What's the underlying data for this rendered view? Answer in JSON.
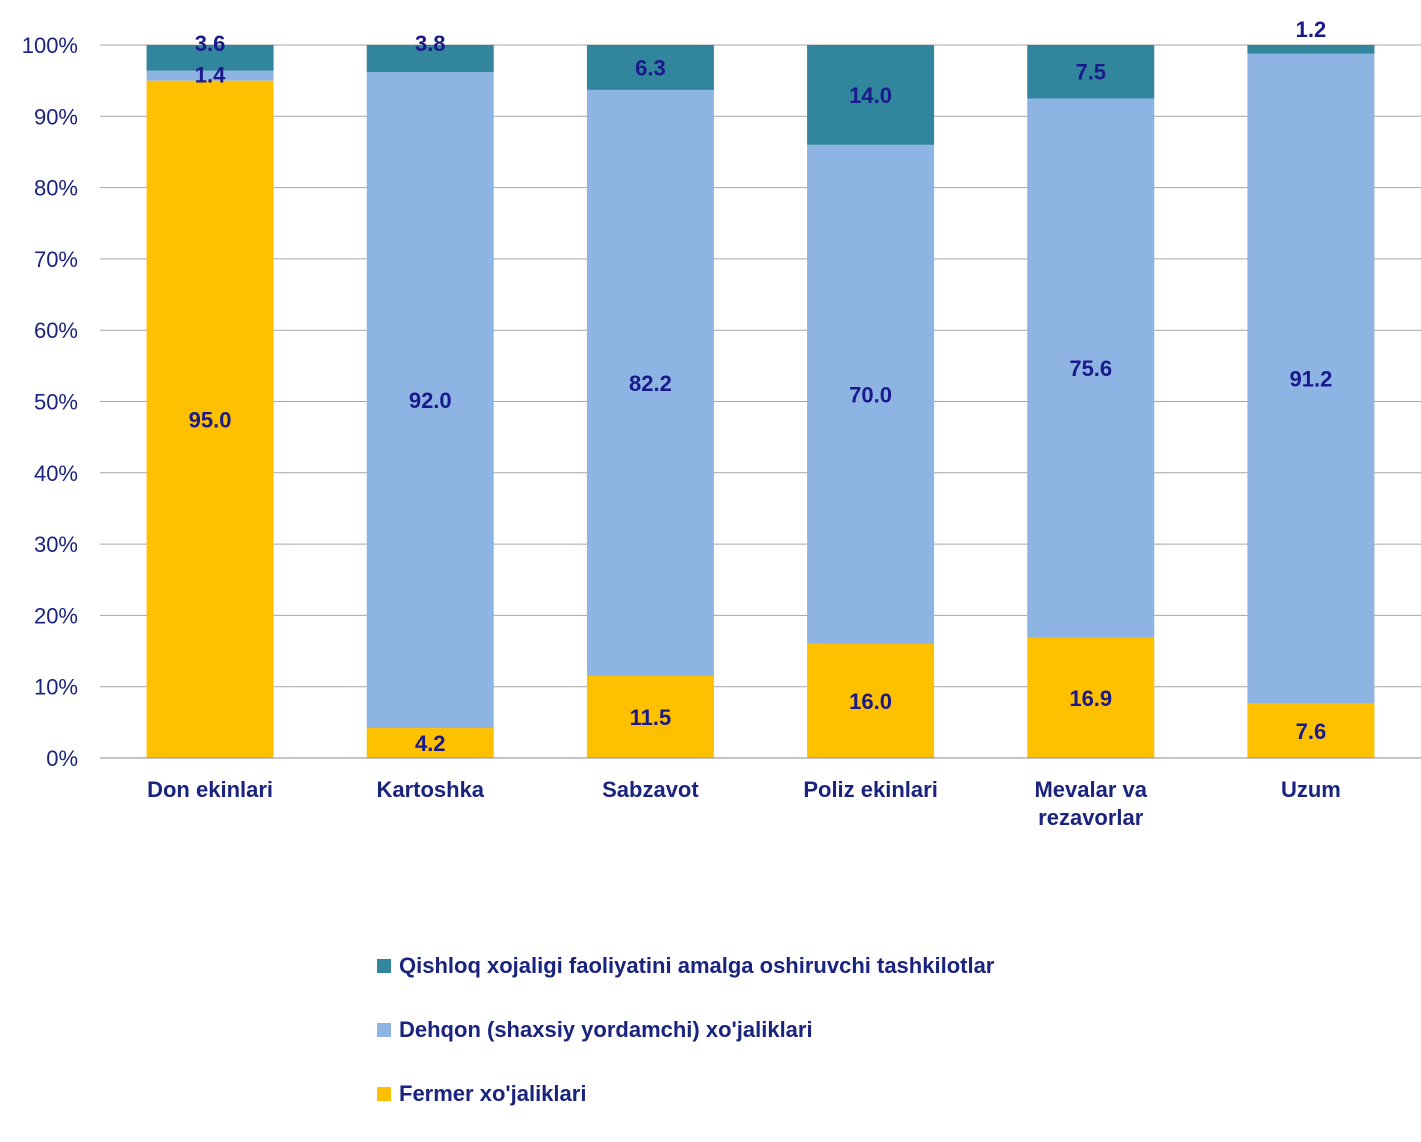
{
  "chart_data": {
    "type": "bar",
    "stacked": true,
    "categories": [
      "Don ekinlari",
      "Kartoshka",
      "Sabzavot",
      "Poliz ekinlari",
      "Mevalar va rezavorlar",
      "Uzum"
    ],
    "series": [
      {
        "name": "Fermer xo'jaliklari",
        "color": "#ffc000",
        "values": [
          95.0,
          4.2,
          11.5,
          16.0,
          16.9,
          7.6
        ]
      },
      {
        "name": "Dehqon (shaxsiy yordamchi) xo'jaliklari",
        "color": "#8eb4e3",
        "values": [
          1.4,
          92.0,
          82.2,
          70.0,
          75.6,
          91.2
        ]
      },
      {
        "name": "Qishloq xojaligi faoliyatini amalga oshiruvchi tashkilotlar",
        "color": "#31859c",
        "values": [
          3.6,
          3.8,
          6.3,
          14.0,
          7.5,
          1.2
        ]
      }
    ],
    "ylim": [
      0,
      100
    ],
    "yticks": [
      "0%",
      "10%",
      "20%",
      "30%",
      "40%",
      "50%",
      "60%",
      "70%",
      "80%",
      "90%",
      "100%"
    ],
    "grid": true,
    "legend_position": "bottom",
    "legend_order": [
      "Qishloq xojaligi faoliyatini amalga oshiruvchi tashkilotlar",
      "Dehqon (shaxsiy yordamchi) xo'jaliklari",
      "Fermer xo'jaliklari"
    ],
    "title": "",
    "xlabel": "",
    "ylabel": ""
  }
}
